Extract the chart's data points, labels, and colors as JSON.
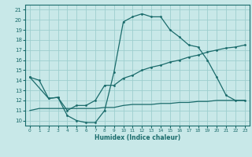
{
  "xlabel": "Humidex (Indice chaleur)",
  "bg_color": "#c8e8e8",
  "grid_color": "#9ecece",
  "line_color": "#1a6b6b",
  "xlim": [
    -0.5,
    23.5
  ],
  "ylim": [
    9.5,
    21.5
  ],
  "xticks": [
    0,
    1,
    2,
    3,
    4,
    5,
    6,
    7,
    8,
    9,
    10,
    11,
    12,
    13,
    14,
    15,
    16,
    17,
    18,
    19,
    20,
    21,
    22,
    23
  ],
  "yticks": [
    10,
    11,
    12,
    13,
    14,
    15,
    16,
    17,
    18,
    19,
    20,
    21
  ],
  "line1_x": [
    0,
    1,
    2,
    3,
    4,
    5,
    6,
    7,
    8,
    9,
    10,
    11,
    12,
    13,
    14,
    15,
    16,
    17,
    18,
    19,
    20,
    21,
    22,
    23
  ],
  "line1_y": [
    14.3,
    14.0,
    12.2,
    12.3,
    10.5,
    10.0,
    9.8,
    9.8,
    11.0,
    14.8,
    19.8,
    20.3,
    20.6,
    20.3,
    20.3,
    19.0,
    18.3,
    17.5,
    17.3,
    16.0,
    14.3,
    12.5,
    12.0,
    12.0
  ],
  "line2_x": [
    0,
    2,
    3,
    4,
    5,
    6,
    7,
    8,
    9,
    10,
    11,
    12,
    13,
    14,
    15,
    16,
    17,
    18,
    19,
    20,
    21,
    22,
    23
  ],
  "line2_y": [
    14.3,
    12.2,
    12.3,
    11.0,
    11.5,
    11.5,
    12.0,
    13.5,
    13.5,
    14.2,
    14.5,
    15.0,
    15.3,
    15.5,
    15.8,
    16.0,
    16.3,
    16.5,
    16.8,
    17.0,
    17.2,
    17.3,
    17.5
  ],
  "line3_x": [
    0,
    1,
    2,
    3,
    4,
    5,
    6,
    7,
    8,
    9,
    10,
    11,
    12,
    13,
    14,
    15,
    16,
    17,
    18,
    19,
    20,
    21,
    22,
    23
  ],
  "line3_y": [
    11.0,
    11.2,
    11.2,
    11.2,
    11.2,
    11.2,
    11.2,
    11.2,
    11.3,
    11.3,
    11.5,
    11.6,
    11.6,
    11.6,
    11.7,
    11.7,
    11.8,
    11.8,
    11.9,
    11.9,
    12.0,
    12.0,
    12.0,
    12.0
  ]
}
